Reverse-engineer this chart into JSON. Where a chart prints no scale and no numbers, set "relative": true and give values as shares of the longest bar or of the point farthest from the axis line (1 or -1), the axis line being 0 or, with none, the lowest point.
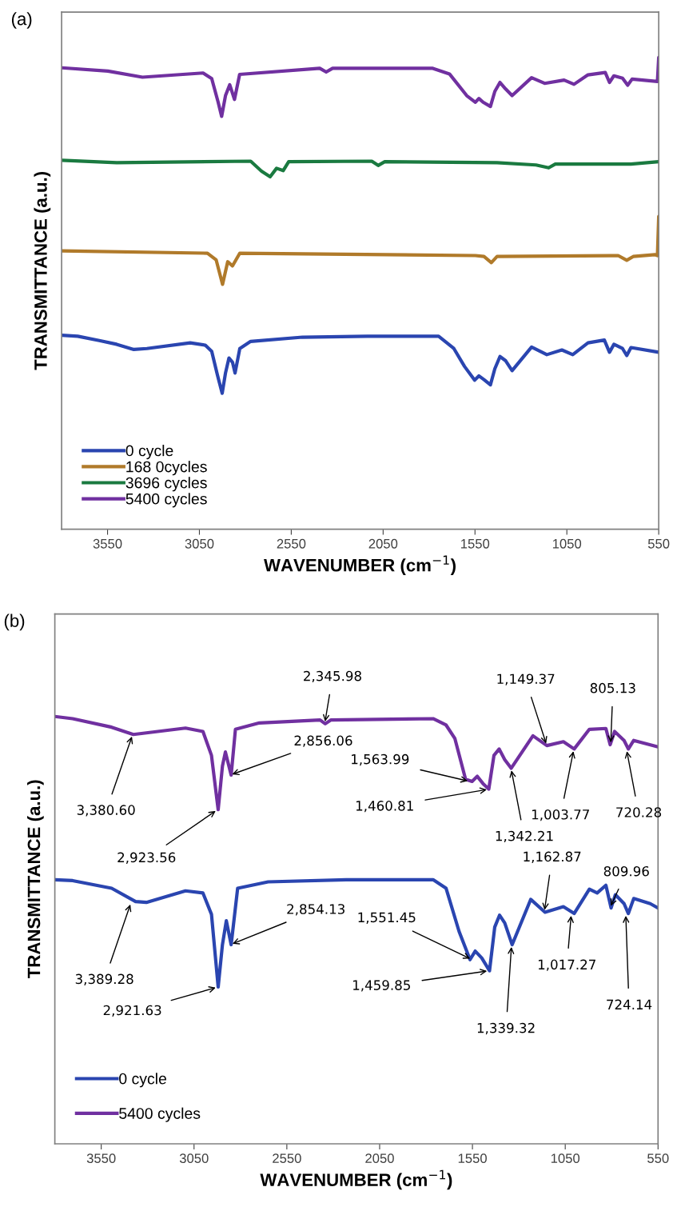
{
  "chart_data": [
    {
      "type": "line",
      "title": "(a)",
      "xlabel": "WAVENUMBER (cm$^{−1}$)",
      "ylabel": "TRANSMITTANCE (a.u.)",
      "relative": true,
      "xlim": [
        3800,
        550
      ],
      "xticks": [
        3550,
        3050,
        2550,
        2050,
        1550,
        1050,
        550
      ],
      "legend": "bottom left",
      "grid": false,
      "marker": "none",
      "line_style": "solid",
      "series": [
        {
          "name": "0 cycle",
          "color": "#2a45b0",
          "x": [
            3800,
            3712,
            3595,
            3501,
            3407,
            3336,
            3100,
            3018,
            2983,
            2952,
            2926,
            2908,
            2889,
            2870,
            2856,
            2830,
            2771,
            2489,
            2136,
            1748,
            1665,
            1607,
            1552,
            1529,
            1501,
            1466,
            1442,
            1414,
            1383,
            1348,
            1242,
            1159,
            1077,
            1018,
            935,
            846,
            818,
            794,
            747,
            724,
            701,
            550
          ],
          "values": [
            0.411,
            0.409,
            0.4,
            0.392,
            0.381,
            0.383,
            0.395,
            0.39,
            0.377,
            0.327,
            0.288,
            0.331,
            0.363,
            0.354,
            0.331,
            0.383,
            0.398,
            0.407,
            0.409,
            0.409,
            0.383,
            0.345,
            0.316,
            0.325,
            0.317,
            0.306,
            0.34,
            0.366,
            0.357,
            0.336,
            0.386,
            0.37,
            0.38,
            0.37,
            0.395,
            0.401,
            0.375,
            0.392,
            0.383,
            0.368,
            0.385,
            0.375
          ]
        },
        {
          "name": "168 0cycles",
          "color": "#b07a2a",
          "x": [
            3800,
            3006,
            2959,
            2924,
            2896,
            2870,
            2830,
            1548,
            1501,
            1461,
            1430,
            771,
            724,
            689,
            571,
            557,
            550
          ],
          "values": [
            0.59,
            0.585,
            0.571,
            0.519,
            0.567,
            0.558,
            0.585,
            0.58,
            0.578,
            0.565,
            0.578,
            0.58,
            0.57,
            0.578,
            0.582,
            0.58,
            0.663
          ]
        },
        {
          "name": "3696 cycles",
          "color": "#1a7a40",
          "x": [
            3800,
            3500,
            2771,
            2712,
            2665,
            2630,
            2594,
            2564,
            2112,
            2077,
            2041,
            1430,
            1218,
            1149,
            1113,
            701,
            550
          ],
          "values": [
            0.782,
            0.777,
            0.78,
            0.759,
            0.747,
            0.765,
            0.76,
            0.779,
            0.78,
            0.771,
            0.779,
            0.777,
            0.772,
            0.766,
            0.774,
            0.774,
            0.779
          ]
        },
        {
          "name": "5400 cycles",
          "color": "#7030a0",
          "x": [
            3800,
            3548,
            3360,
            3030,
            2983,
            2948,
            2929,
            2908,
            2885,
            2859,
            2831,
            2395,
            2360,
            2325,
            1783,
            1689,
            1595,
            1548,
            1529,
            1506,
            1466,
            1442,
            1414,
            1383,
            1348,
            1242,
            1171,
            1065,
            1011,
            935,
            841,
            818,
            794,
            747,
            719,
            695,
            557,
            550
          ],
          "values": [
            0.978,
            0.971,
            0.958,
            0.967,
            0.955,
            0.905,
            0.875,
            0.919,
            0.942,
            0.911,
            0.964,
            0.977,
            0.969,
            0.977,
            0.977,
            0.965,
            0.919,
            0.905,
            0.913,
            0.905,
            0.896,
            0.928,
            0.947,
            0.933,
            0.919,
            0.957,
            0.945,
            0.952,
            0.943,
            0.963,
            0.968,
            0.947,
            0.961,
            0.956,
            0.941,
            0.954,
            0.949,
            1.0
          ]
        }
      ]
    },
    {
      "type": "line",
      "title": "(b)",
      "xlabel": "WAVENUMBER (cm$^{−1}$)",
      "ylabel": "TRANSMITTANCE (a.u.)",
      "relative": true,
      "xlim": [
        3800,
        550
      ],
      "xticks": [
        3550,
        3050,
        2550,
        2050,
        1550,
        1050,
        550
      ],
      "legend": "bottom left",
      "grid": false,
      "marker": "none",
      "line_style": "solid",
      "series": [
        {
          "name": "0 cycle",
          "color": "#2a45b0",
          "x": [
            3800,
            3704,
            3494,
            3365,
            3307,
            3096,
            3002,
            2956,
            2920,
            2897,
            2876,
            2850,
            2815,
            2651,
            2230,
            1762,
            1692,
            1622,
            1563,
            1535,
            1500,
            1458,
            1430,
            1404,
            1376,
            1336,
            1236,
            1159,
            1060,
            1002,
            920,
            878,
            831,
            803,
            780,
            733,
            710,
            681,
            592,
            550
          ],
          "values": [
            0.618,
            0.616,
            0.598,
            0.567,
            0.565,
            0.592,
            0.587,
            0.537,
            0.367,
            0.466,
            0.522,
            0.466,
            0.598,
            0.613,
            0.618,
            0.618,
            0.598,
            0.497,
            0.431,
            0.451,
            0.435,
            0.405,
            0.507,
            0.535,
            0.517,
            0.466,
            0.572,
            0.542,
            0.555,
            0.539,
            0.596,
            0.587,
            0.605,
            0.552,
            0.583,
            0.562,
            0.539,
            0.574,
            0.562,
            0.552
          ]
        },
        {
          "name": "5400 cycles",
          "color": "#7030a0",
          "x": [
            3800,
            3704,
            3494,
            3377,
            3096,
            3002,
            2956,
            2920,
            2897,
            2881,
            2850,
            2827,
            2698,
            2371,
            2343,
            2312,
            1762,
            1692,
            1645,
            1587,
            1552,
            1524,
            1493,
            1462,
            1434,
            1406,
            1376,
            1341,
            1224,
            1149,
            1060,
            1002,
            920,
            831,
            808,
            784,
            733,
            710,
            681,
            550
          ],
          "values": [
            1.0,
            0.995,
            0.975,
            0.958,
            0.973,
            0.965,
            0.909,
            0.782,
            0.884,
            0.917,
            0.863,
            0.97,
            0.985,
            0.992,
            0.983,
            0.992,
            0.995,
            0.98,
            0.949,
            0.853,
            0.848,
            0.86,
            0.843,
            0.83,
            0.909,
            0.924,
            0.899,
            0.879,
            0.955,
            0.932,
            0.941,
            0.924,
            0.97,
            0.972,
            0.934,
            0.965,
            0.944,
            0.924,
            0.944,
            0.929
          ]
        }
      ],
      "annotations": [
        {
          "text": "3,380.60",
          "x": 3380.6,
          "y": 0.958
        },
        {
          "text": "2,923.56",
          "x": 2923.56,
          "y": 0.782
        },
        {
          "text": "2,856.06",
          "x": 2856.06,
          "y": 0.863
        },
        {
          "text": "2,345.98",
          "x": 2345.98,
          "y": 0.983
        },
        {
          "text": "1,563.99",
          "x": 1563.99,
          "y": 0.848
        },
        {
          "text": "1,460.81",
          "x": 1460.81,
          "y": 0.83
        },
        {
          "text": "1,342.21",
          "x": 1342.21,
          "y": 0.879
        },
        {
          "text": "1,149.37",
          "x": 1149.37,
          "y": 0.932
        },
        {
          "text": "1,003.77",
          "x": 1003.77,
          "y": 0.924
        },
        {
          "text": "805.13",
          "x": 805.13,
          "y": 0.934
        },
        {
          "text": "720.28",
          "x": 720.28,
          "y": 0.924
        },
        {
          "text": "3,389.28",
          "x": 3389.28,
          "y": 0.565
        },
        {
          "text": "2,921.63",
          "x": 2921.63,
          "y": 0.367
        },
        {
          "text": "2,854.13",
          "x": 2854.13,
          "y": 0.466
        },
        {
          "text": "1,551.45",
          "x": 1551.45,
          "y": 0.431
        },
        {
          "text": "1,459.85",
          "x": 1459.85,
          "y": 0.405
        },
        {
          "text": "1,339.32",
          "x": 1339.32,
          "y": 0.466
        },
        {
          "text": "1,162.87",
          "x": 1162.87,
          "y": 0.542
        },
        {
          "text": "1,017.27",
          "x": 1017.27,
          "y": 0.539
        },
        {
          "text": "809.96",
          "x": 809.96,
          "y": 0.552
        },
        {
          "text": "724.14",
          "x": 724.14,
          "y": 0.539
        }
      ]
    }
  ]
}
